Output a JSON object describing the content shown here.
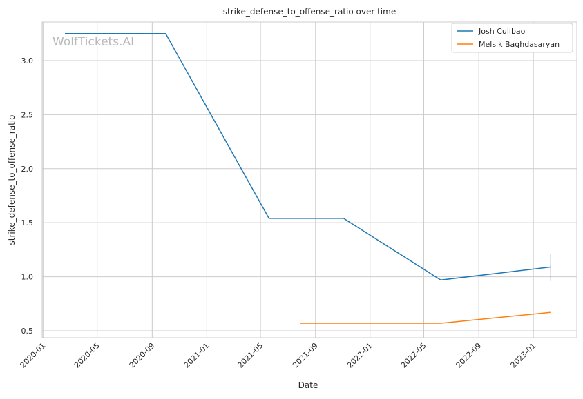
{
  "chart_data": {
    "type": "line",
    "title": "strike_defense_to_offense_ratio over time",
    "xlabel": "Date",
    "ylabel": "strike_defense_to_offense_ratio",
    "watermark": "WolfTickets.AI",
    "xlim": [
      "2019-12-30",
      "2023-04-08"
    ],
    "ylim": [
      0.436,
      3.357
    ],
    "xticks": [
      "2020-01",
      "2020-05",
      "2020-09",
      "2021-01",
      "2021-05",
      "2021-09",
      "2022-01",
      "2022-05",
      "2022-09",
      "2023-01"
    ],
    "yticks": [
      "0.5",
      "1.0",
      "1.5",
      "2.0",
      "2.5",
      "3.0"
    ],
    "grid": true,
    "legend_position": "top-right",
    "series": [
      {
        "name": "Josh Culibao",
        "color": "#1f77b4",
        "x": [
          "2020-02-19",
          "2020-10-01",
          "2021-05-20",
          "2021-11-03",
          "2022-06-08",
          "2023-02-08"
        ],
        "y": [
          3.25,
          3.25,
          1.54,
          1.54,
          0.97,
          1.09
        ],
        "last_point_interval": [
          0.96,
          1.21
        ]
      },
      {
        "name": "Melsik Baghdasaryan",
        "color": "#ff7f0e",
        "x": [
          "2021-07-28",
          "2022-06-08",
          "2023-02-08"
        ],
        "y": [
          0.57,
          0.57,
          0.67
        ]
      }
    ]
  }
}
